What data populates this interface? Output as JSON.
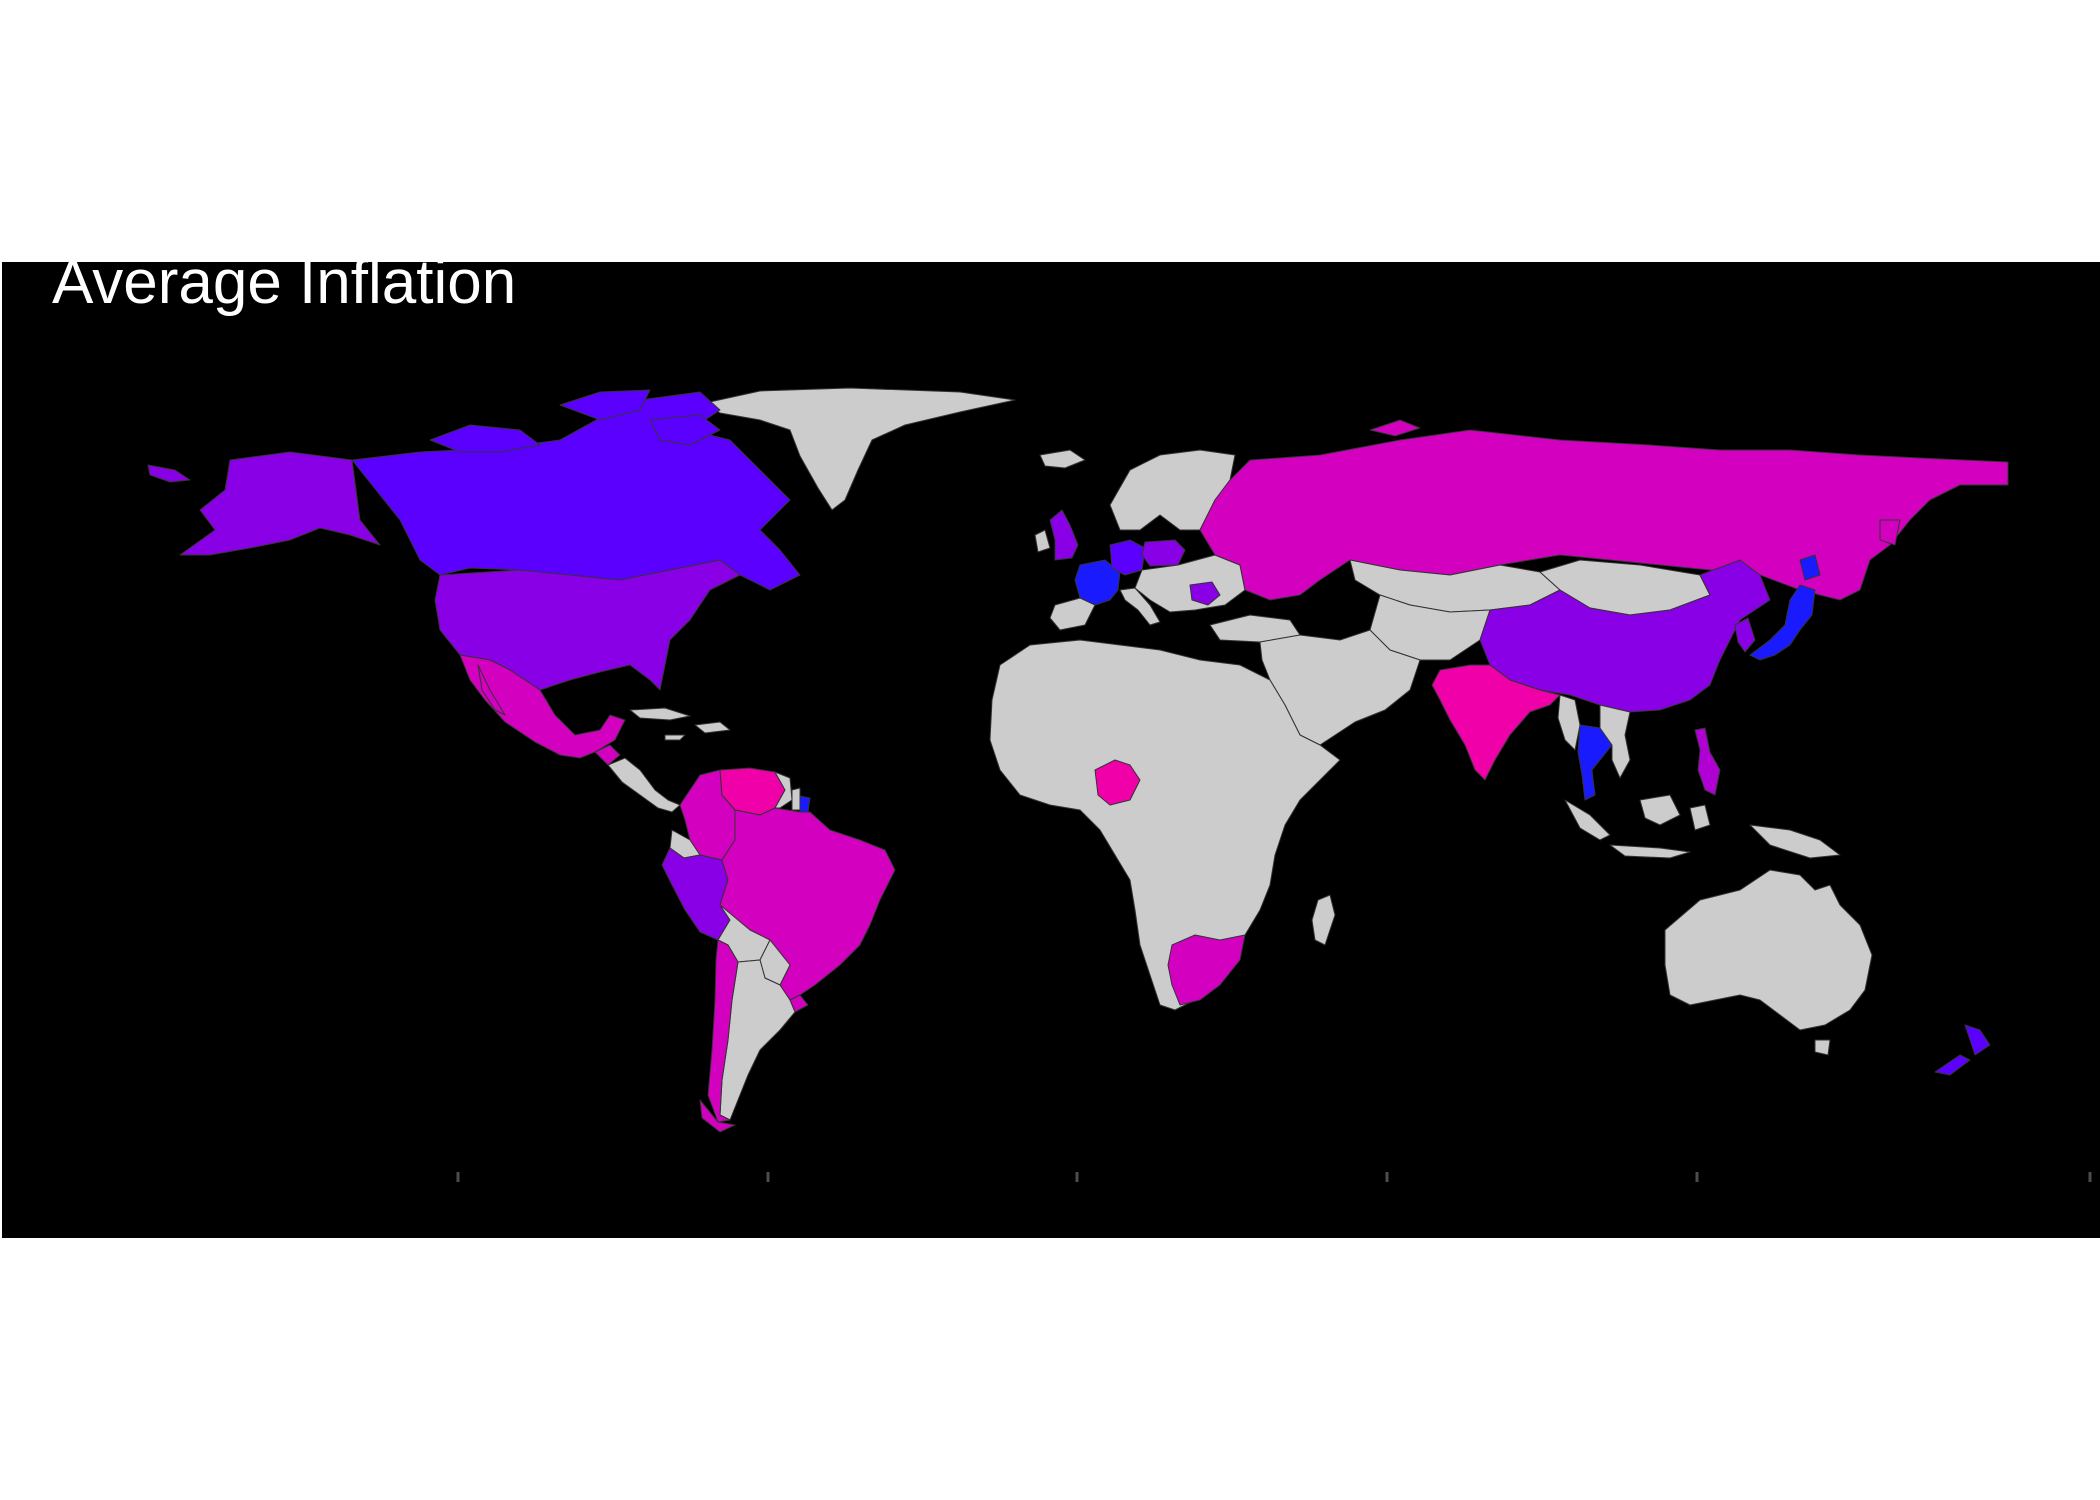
{
  "title": "Average Inflation",
  "colors": {
    "background": "#000000",
    "no_data": "#cccccc",
    "border": "#333333",
    "low": "#1a1aff",
    "mid_low": "#5b00ff",
    "mid": "#8a00e6",
    "mid_high": "#b000d4",
    "high": "#d400c0",
    "very_high": "#f000a8"
  },
  "regions": [
    {
      "name": "Greenland",
      "fill": "no_data"
    },
    {
      "name": "Canada",
      "fill": "mid_low"
    },
    {
      "name": "Alaska",
      "fill": "mid"
    },
    {
      "name": "United States",
      "fill": "mid"
    },
    {
      "name": "Mexico",
      "fill": "high"
    },
    {
      "name": "Guatemala",
      "fill": "high"
    },
    {
      "name": "Central America",
      "fill": "no_data"
    },
    {
      "name": "Caribbean",
      "fill": "no_data"
    },
    {
      "name": "Colombia",
      "fill": "high"
    },
    {
      "name": "Venezuela",
      "fill": "very_high"
    },
    {
      "name": "Guyana",
      "fill": "no_data"
    },
    {
      "name": "Suriname",
      "fill": "no_data"
    },
    {
      "name": "French Guiana",
      "fill": "low"
    },
    {
      "name": "Ecuador",
      "fill": "no_data"
    },
    {
      "name": "Peru",
      "fill": "mid"
    },
    {
      "name": "Brazil",
      "fill": "high"
    },
    {
      "name": "Bolivia",
      "fill": "no_data"
    },
    {
      "name": "Paraguay",
      "fill": "no_data"
    },
    {
      "name": "Uruguay",
      "fill": "high"
    },
    {
      "name": "Chile",
      "fill": "high"
    },
    {
      "name": "Argentina",
      "fill": "no_data"
    },
    {
      "name": "Iceland",
      "fill": "no_data"
    },
    {
      "name": "United Kingdom",
      "fill": "mid"
    },
    {
      "name": "Ireland",
      "fill": "no_data"
    },
    {
      "name": "Scandinavia",
      "fill": "no_data"
    },
    {
      "name": "France",
      "fill": "low"
    },
    {
      "name": "Germany",
      "fill": "mid_low"
    },
    {
      "name": "Poland",
      "fill": "mid"
    },
    {
      "name": "Spain",
      "fill": "no_data"
    },
    {
      "name": "Italy",
      "fill": "no_data"
    },
    {
      "name": "Eastern Europe",
      "fill": "no_data"
    },
    {
      "name": "Romania",
      "fill": "mid"
    },
    {
      "name": "Russia",
      "fill": "high"
    },
    {
      "name": "Kazakhstan",
      "fill": "no_data"
    },
    {
      "name": "Mongolia",
      "fill": "no_data"
    },
    {
      "name": "China",
      "fill": "mid"
    },
    {
      "name": "Korea",
      "fill": "mid"
    },
    {
      "name": "Japan",
      "fill": "low"
    },
    {
      "name": "Middle East",
      "fill": "no_data"
    },
    {
      "name": "Turkey",
      "fill": "no_data"
    },
    {
      "name": "Central Asia",
      "fill": "no_data"
    },
    {
      "name": "India",
      "fill": "very_high"
    },
    {
      "name": "Myanmar",
      "fill": "no_data"
    },
    {
      "name": "Thailand",
      "fill": "low"
    },
    {
      "name": "Vietnam",
      "fill": "no_data"
    },
    {
      "name": "Philippines",
      "fill": "mid_high"
    },
    {
      "name": "Indonesia",
      "fill": "no_data"
    },
    {
      "name": "Papua New Guinea",
      "fill": "no_data"
    },
    {
      "name": "Australia",
      "fill": "no_data"
    },
    {
      "name": "New Zealand",
      "fill": "mid_low"
    },
    {
      "name": "Africa",
      "fill": "no_data"
    },
    {
      "name": "Nigeria",
      "fill": "very_high"
    },
    {
      "name": "South Africa",
      "fill": "high"
    },
    {
      "name": "Madagascar",
      "fill": "no_data"
    }
  ]
}
